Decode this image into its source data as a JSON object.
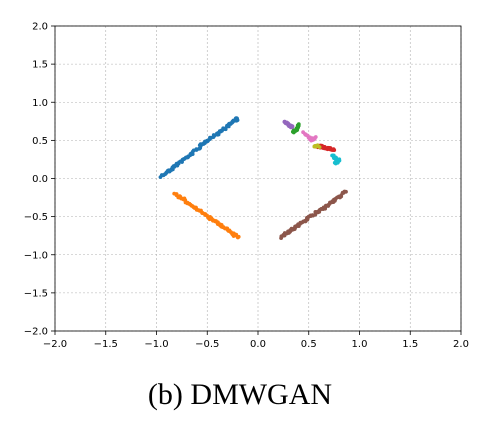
{
  "caption": "(b) DMWGAN",
  "chart_data": {
    "type": "scatter",
    "title": "",
    "xlabel": "",
    "ylabel": "",
    "xlim": [
      -2.0,
      2.0
    ],
    "ylim": [
      -2.0,
      2.0
    ],
    "grid": true,
    "xticks": [
      "−2.0",
      "−1.5",
      "−1.0",
      "−0.5",
      "0.0",
      "0.5",
      "1.0",
      "1.5",
      "2.0"
    ],
    "yticks": [
      "2.0",
      "1.5",
      "1.0",
      "0.5",
      "0.0",
      "−0.5",
      "−1.0",
      "−1.5",
      "−2.0"
    ],
    "series": [
      {
        "color": "#1f77b4",
        "points": [
          [
            -0.95,
            0.03
          ],
          [
            -0.88,
            0.1
          ],
          [
            -0.8,
            0.18
          ],
          [
            -0.72,
            0.26
          ],
          [
            -0.65,
            0.33
          ],
          [
            -0.57,
            0.42
          ],
          [
            -0.5,
            0.5
          ],
          [
            -0.42,
            0.57
          ],
          [
            -0.35,
            0.64
          ],
          [
            -0.28,
            0.71
          ],
          [
            -0.22,
            0.77
          ],
          [
            -0.2,
            0.78
          ]
        ]
      },
      {
        "color": "#ff7f0e",
        "points": [
          [
            -0.82,
            -0.2
          ],
          [
            -0.75,
            -0.26
          ],
          [
            -0.68,
            -0.33
          ],
          [
            -0.6,
            -0.4
          ],
          [
            -0.52,
            -0.48
          ],
          [
            -0.44,
            -0.55
          ],
          [
            -0.36,
            -0.62
          ],
          [
            -0.28,
            -0.7
          ],
          [
            -0.2,
            -0.77
          ]
        ]
      },
      {
        "color": "#2ca02c",
        "points": [
          [
            0.35,
            0.6
          ],
          [
            0.38,
            0.65
          ],
          [
            0.41,
            0.7
          ]
        ]
      },
      {
        "color": "#d62728",
        "points": [
          [
            0.6,
            0.42
          ],
          [
            0.65,
            0.41
          ],
          [
            0.7,
            0.39
          ],
          [
            0.75,
            0.38
          ]
        ]
      },
      {
        "color": "#9467bd",
        "points": [
          [
            0.26,
            0.74
          ],
          [
            0.29,
            0.72
          ],
          [
            0.32,
            0.69
          ],
          [
            0.33,
            0.67
          ]
        ]
      },
      {
        "color": "#8c564b",
        "points": [
          [
            0.22,
            -0.77
          ],
          [
            0.3,
            -0.7
          ],
          [
            0.38,
            -0.63
          ],
          [
            0.46,
            -0.55
          ],
          [
            0.54,
            -0.48
          ],
          [
            0.62,
            -0.41
          ],
          [
            0.7,
            -0.34
          ],
          [
            0.78,
            -0.26
          ],
          [
            0.87,
            -0.17
          ]
        ]
      },
      {
        "color": "#e377c2",
        "points": [
          [
            0.45,
            0.6
          ],
          [
            0.53,
            0.51
          ],
          [
            0.56,
            0.53
          ]
        ]
      },
      {
        "color": "#bcbd22",
        "points": [
          [
            0.55,
            0.43
          ],
          [
            0.6,
            0.42
          ]
        ]
      },
      {
        "color": "#17becf",
        "points": [
          [
            0.74,
            0.3
          ],
          [
            0.77,
            0.26
          ],
          [
            0.8,
            0.23
          ],
          [
            0.76,
            0.2
          ]
        ]
      }
    ]
  }
}
